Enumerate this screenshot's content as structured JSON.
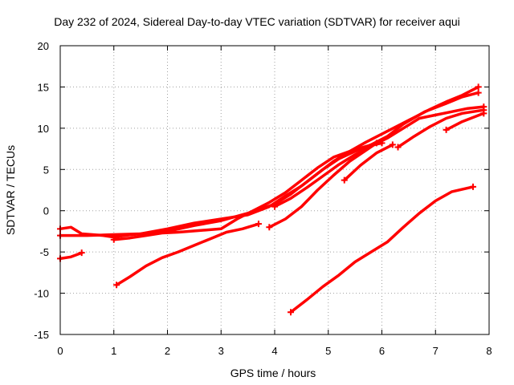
{
  "chart_data": {
    "type": "line",
    "title": "Day 232 of 2024, Sidereal Day-to-day VTEC variation (SDTVAR) for receiver aqui",
    "xlabel": "GPS time / hours",
    "ylabel": "SDTVAR / TECUs",
    "xlim": [
      0,
      8
    ],
    "ylim": [
      -15,
      20
    ],
    "xticks": [
      0,
      1,
      2,
      3,
      4,
      5,
      6,
      7,
      8
    ],
    "yticks": [
      -15,
      -10,
      -5,
      0,
      5,
      10,
      15,
      20
    ],
    "grid": true,
    "line_color": "#ff0000",
    "series": [
      {
        "name": "s1",
        "x": [
          0,
          0.2,
          0.4,
          0.6,
          0.8,
          1.0,
          1.2,
          1.5,
          2.0,
          2.5,
          3.0,
          3.5,
          3.9,
          4.2,
          4.5,
          4.8,
          5.1,
          5.4,
          5.7,
          6.0,
          6.3,
          6.6,
          6.9,
          7.2,
          7.5,
          7.8
        ],
        "y": [
          -2.2,
          -2.0,
          -2.8,
          -2.9,
          -3.0,
          -3.2,
          -3.0,
          -2.8,
          -2.2,
          -1.5,
          -1.0,
          -0.5,
          0.5,
          1.8,
          3.0,
          4.5,
          6.0,
          7.2,
          8.3,
          9.3,
          10.3,
          11.3,
          12.3,
          13.2,
          14.0,
          15.0
        ]
      },
      {
        "name": "s2",
        "x": [
          0,
          0.5,
          1.0,
          1.5,
          2.0,
          2.5,
          3.0,
          3.5,
          4.0,
          4.3,
          4.6,
          4.9,
          5.2,
          5.5,
          5.8,
          6.1,
          6.4,
          6.8,
          7.2,
          7.5,
          7.8
        ],
        "y": [
          -3.0,
          -3.0,
          -2.9,
          -2.8,
          -2.5,
          -1.8,
          -1.2,
          -0.3,
          0.8,
          2.0,
          3.5,
          5.0,
          6.3,
          7.2,
          8.0,
          9.0,
          10.5,
          12.0,
          13.0,
          13.8,
          14.3
        ]
      },
      {
        "name": "s3",
        "x": [
          1.0,
          1.3,
          1.6,
          1.9,
          2.2,
          2.6,
          3.0,
          3.3,
          3.6,
          3.9,
          4.2,
          4.5,
          4.8,
          5.1,
          5.4,
          5.7,
          6.0
        ],
        "y": [
          -3.5,
          -3.3,
          -3.0,
          -2.7,
          -2.6,
          -2.4,
          -2.2,
          -1.0,
          0.0,
          1.0,
          2.2,
          3.7,
          5.2,
          6.5,
          7.2,
          7.8,
          8.2
        ]
      },
      {
        "name": "s4",
        "x": [
          4.0,
          4.3,
          4.6,
          4.9,
          5.2,
          5.5,
          5.8,
          6.1,
          6.4,
          6.7,
          7.0,
          7.3,
          7.6,
          7.9
        ],
        "y": [
          0.5,
          1.5,
          2.8,
          4.2,
          5.6,
          6.8,
          7.8,
          8.8,
          10.0,
          11.2,
          11.6,
          12.0,
          12.4,
          12.6
        ]
      },
      {
        "name": "s5",
        "x": [
          1.05,
          1.3,
          1.6,
          1.9,
          2.2,
          2.5,
          2.8,
          3.1,
          3.4,
          3.7
        ],
        "y": [
          -9.0,
          -8.0,
          -6.7,
          -5.7,
          -5.0,
          -4.2,
          -3.4,
          -2.6,
          -2.2,
          -1.6
        ]
      },
      {
        "name": "s6",
        "x": [
          3.9,
          4.2,
          4.5,
          4.8,
          5.1,
          5.4,
          5.7,
          5.9
        ],
        "y": [
          -2.0,
          -1.0,
          0.5,
          2.5,
          4.3,
          6.0,
          7.3,
          8.2
        ]
      },
      {
        "name": "s7",
        "x": [
          5.3,
          5.6,
          5.9,
          6.2
        ],
        "y": [
          3.7,
          5.5,
          7.0,
          8.0
        ]
      },
      {
        "name": "s8",
        "x": [
          6.3,
          6.6,
          6.9,
          7.2,
          7.5,
          7.9
        ],
        "y": [
          7.7,
          9.0,
          10.2,
          11.2,
          11.8,
          12.2
        ]
      },
      {
        "name": "s9",
        "x": [
          7.2,
          7.5,
          7.9
        ],
        "y": [
          9.8,
          10.8,
          11.8
        ]
      },
      {
        "name": "s10",
        "x": [
          0,
          0.2,
          0.4
        ],
        "y": [
          -5.8,
          -5.6,
          -5.1
        ]
      },
      {
        "name": "s11",
        "x": [
          4.3,
          4.6,
          4.9,
          5.2,
          5.5,
          5.8,
          6.1,
          6.4,
          6.7,
          7.0,
          7.3,
          7.7
        ],
        "y": [
          -12.3,
          -10.8,
          -9.2,
          -7.8,
          -6.2,
          -5.0,
          -3.8,
          -2.0,
          -0.3,
          1.2,
          2.3,
          2.9
        ]
      }
    ]
  }
}
